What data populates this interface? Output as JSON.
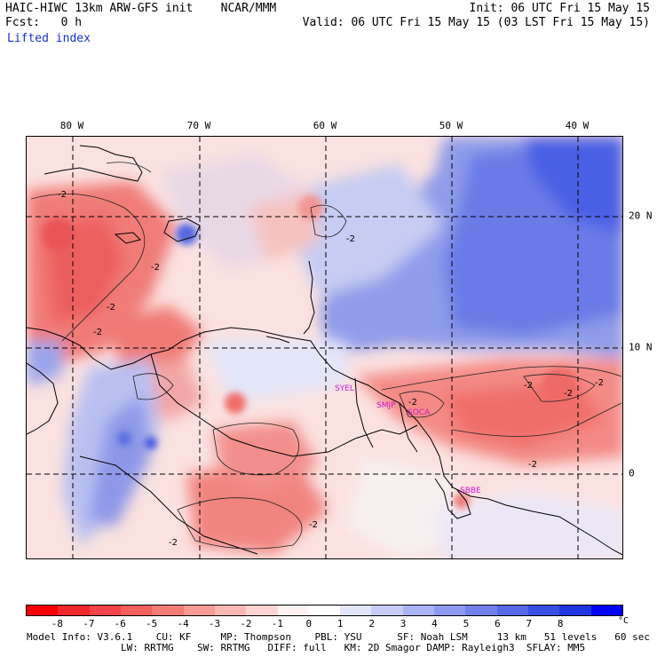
{
  "header": {
    "model": "HAIC-HIWC 13km ARW-GFS init",
    "org": "NCAR/MMM",
    "fcst": "Fcst:   0 h",
    "init": "Init: 06 UTC Fri 15 May 15",
    "valid": "Valid: 06 UTC Fri 15 May 15 (03 LST Fri 15 May 15)",
    "field": "Lifted index"
  },
  "map": {
    "lon_labels": [
      "80 W",
      "70 W",
      "60 W",
      "50 W",
      "40 W"
    ],
    "lat_labels": [
      "20 N",
      "10 N",
      "0"
    ],
    "contour_labels": [
      "-2",
      "-2",
      "-2",
      "-2",
      "-2",
      "-2",
      "-2",
      "-2",
      "-2",
      "-2",
      "-2",
      "-2"
    ],
    "stations": [
      "SYEL",
      "SMJP",
      "SOCA",
      "SBBE"
    ]
  },
  "colorbar": {
    "colors": [
      "#ff0000",
      "#f3262b",
      "#f4444a",
      "#f5605f",
      "#f67c78",
      "#f89a96",
      "#fab7b4",
      "#fcd5d2",
      "#fdf2f1",
      "#ffffff",
      "#e3e6fb",
      "#c7cdf7",
      "#abb4f4",
      "#8e9af0",
      "#7281ec",
      "#5667e8",
      "#3a4ee5",
      "#1e35e1",
      "#0000ff"
    ],
    "ticks": [
      "-8",
      "-7",
      "-6",
      "-5",
      "-4",
      "-3",
      "-2",
      "-1",
      "0",
      "1",
      "2",
      "3",
      "4",
      "5",
      "6",
      "7",
      "8"
    ],
    "unit": "°C"
  },
  "footer": {
    "line1": "Model Info: V3.6.1    CU: KF     MP: Thompson    PBL: YSU      SF: Noah LSM     13 km   51 levels   60 sec",
    "line2": "                LW: RRTMG    SW: RRTMG   DIFF: full   KM: 2D Smagor DAMP: Rayleigh3  SFLAY: MM5"
  }
}
